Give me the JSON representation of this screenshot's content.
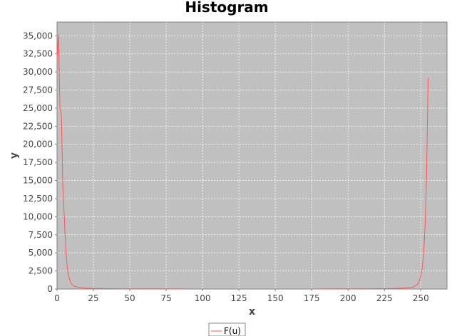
{
  "chart_data": {
    "type": "line",
    "title": "Histogram",
    "xlabel": "x",
    "ylabel": "y",
    "xlim": [
      0,
      268
    ],
    "ylim": [
      0,
      36900
    ],
    "x_ticks": [
      0,
      25,
      50,
      75,
      100,
      125,
      150,
      175,
      200,
      225,
      250
    ],
    "x_tick_labels": [
      "0",
      "25",
      "50",
      "75",
      "100",
      "125",
      "150",
      "175",
      "200",
      "225",
      "250"
    ],
    "y_ticks": [
      0,
      2500,
      5000,
      7500,
      10000,
      12500,
      15000,
      17500,
      20000,
      22500,
      25000,
      27500,
      30000,
      32500,
      35000
    ],
    "y_tick_labels": [
      "0",
      "2,500",
      "5,000",
      "7,500",
      "10,000",
      "12,500",
      "15,000",
      "17,500",
      "20,000",
      "22,500",
      "25,000",
      "27,500",
      "30,000",
      "32,500",
      "35,000"
    ],
    "grid": true,
    "legend_position": "bottom-center",
    "plot_background": "#c0c0c0",
    "series": [
      {
        "name": "F(u)",
        "color": "#ff5555",
        "segments": [
          [
            [
              0,
              32000
            ],
            [
              1,
              35200
            ],
            [
              2,
              25000
            ],
            [
              3,
              24000
            ],
            [
              4,
              14000
            ],
            [
              5,
              10000
            ],
            [
              6,
              5500
            ],
            [
              7,
              3000
            ],
            [
              8,
              1800
            ],
            [
              9,
              1100
            ],
            [
              10,
              700
            ],
            [
              11,
              500
            ],
            [
              12,
              380
            ],
            [
              14,
              280
            ],
            [
              16,
              200
            ],
            [
              18,
              150
            ],
            [
              20,
              110
            ],
            [
              25,
              80
            ],
            [
              30,
              60
            ],
            [
              35,
              45
            ],
            [
              40,
              40
            ],
            [
              50,
              30
            ],
            [
              60,
              25
            ],
            [
              70,
              20
            ],
            [
              80,
              15
            ],
            [
              87,
              10
            ]
          ],
          [
            [
              89,
              5
            ],
            [
              91,
              5
            ]
          ],
          [
            [
              176,
              5
            ],
            [
              178,
              5
            ]
          ],
          [
            [
              181,
              10
            ],
            [
              190,
              15
            ],
            [
              200,
              20
            ],
            [
              210,
              30
            ],
            [
              220,
              45
            ],
            [
              230,
              70
            ],
            [
              235,
              100
            ],
            [
              240,
              150
            ],
            [
              244,
              250
            ],
            [
              246,
              400
            ],
            [
              248,
              700
            ],
            [
              249,
              1100
            ],
            [
              250,
              1800
            ],
            [
              251,
              3000
            ],
            [
              252,
              5000
            ],
            [
              253,
              9000
            ],
            [
              254,
              16000
            ],
            [
              255,
              29200
            ]
          ]
        ]
      }
    ]
  }
}
